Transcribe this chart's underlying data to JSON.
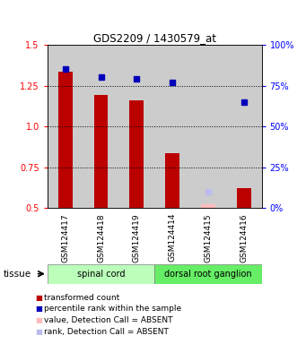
{
  "title": "GDS2209 / 1430579_at",
  "samples": [
    "GSM124417",
    "GSM124418",
    "GSM124419",
    "GSM124414",
    "GSM124415",
    "GSM124416"
  ],
  "group_labels": [
    "spinal cord",
    "dorsal root ganglion"
  ],
  "transformed_count": [
    1.335,
    1.19,
    1.16,
    0.835,
    null,
    0.625
  ],
  "percentile_rank_pct": [
    85.0,
    80.0,
    79.0,
    77.0,
    null,
    65.0
  ],
  "absent_value": [
    null,
    null,
    null,
    null,
    0.525,
    null
  ],
  "absent_rank_pct": [
    null,
    null,
    null,
    null,
    10.0,
    null
  ],
  "ylim": [
    0.5,
    1.5
  ],
  "y2lim": [
    0,
    100
  ],
  "yticks": [
    0.5,
    0.75,
    1.0,
    1.25,
    1.5
  ],
  "y2ticks": [
    0,
    25,
    50,
    75,
    100
  ],
  "bar_color": "#bb0000",
  "blue_color": "#0000bb",
  "absent_bar_color": "#ffbbbb",
  "absent_rank_color": "#bbbbee",
  "tissue_label": "tissue",
  "col_bg": "#cccccc",
  "group1_color": "#bbffbb",
  "group2_color": "#66ee66",
  "legend_items": [
    {
      "label": "transformed count",
      "color": "#bb0000"
    },
    {
      "label": "percentile rank within the sample",
      "color": "#0000bb"
    },
    {
      "label": "value, Detection Call = ABSENT",
      "color": "#ffbbbb"
    },
    {
      "label": "rank, Detection Call = ABSENT",
      "color": "#bbbbee"
    }
  ]
}
